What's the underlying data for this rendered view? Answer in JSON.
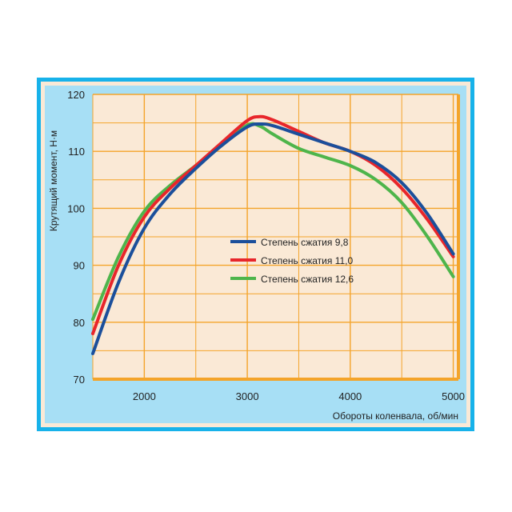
{
  "chart_data": {
    "type": "line",
    "xlabel": "Обороты коленвала, об/мин",
    "ylabel": "Крутящий момент, Н·м",
    "xlim": [
      1500,
      5050
    ],
    "ylim": [
      70,
      120
    ],
    "x_ticks": [
      "2000",
      "3000",
      "4000",
      "5000"
    ],
    "y_ticks": [
      "70",
      "80",
      "90",
      "100",
      "110",
      "120"
    ],
    "grid": true,
    "legend_position": "center",
    "colors": {
      "frame": "#17b2ea",
      "panel": "#a7dff5",
      "plot": "#fae9d6",
      "grid": "#f4a42a"
    },
    "x": [
      1500,
      1750,
      2000,
      2250,
      2500,
      2750,
      3000,
      3125,
      3250,
      3500,
      3750,
      4000,
      4250,
      4500,
      4750,
      5000
    ],
    "series": [
      {
        "name": "Степень сжатия 9,8",
        "color": "#1b4f9b",
        "values": [
          74.5,
          87,
          96.5,
          102.5,
          107,
          111,
          114.3,
          114.8,
          114.5,
          113,
          111.5,
          110,
          108,
          104.5,
          99,
          92
        ]
      },
      {
        "name": "Степень сжатия 11,0",
        "color": "#e8262b",
        "values": [
          78,
          90,
          98.5,
          103.5,
          107.5,
          111.5,
          115.4,
          116.1,
          115.5,
          113.5,
          111.5,
          110,
          107.5,
          103.5,
          98,
          91.5
        ]
      },
      {
        "name": "Степень сжатия 12,6",
        "color": "#4eb54b",
        "values": [
          80.5,
          91.5,
          99.5,
          104,
          107.5,
          111,
          114.6,
          114.4,
          113,
          110.5,
          109,
          107.5,
          105,
          101,
          95,
          88
        ]
      }
    ]
  }
}
